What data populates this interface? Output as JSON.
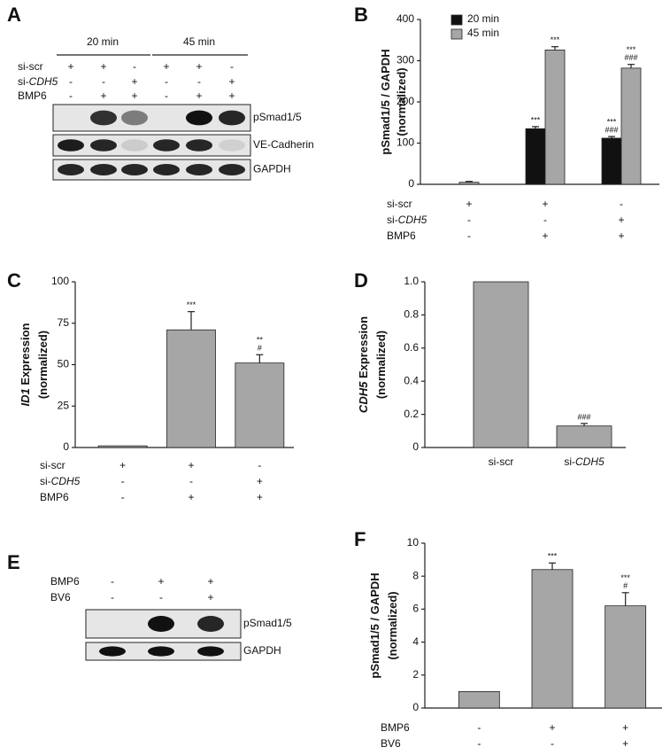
{
  "chart_data": [
    {
      "panel": "B",
      "type": "bar",
      "ylabel": [
        [
          {
            "text": "pSmad1/5 / GAPDH"
          }
        ],
        [
          {
            "text": "(normalized)"
          }
        ]
      ],
      "series": [
        {
          "name": "20 min",
          "color": "#111111",
          "values": [
            null,
            135,
            112
          ],
          "errors": [
            null,
            5,
            4
          ],
          "significance": [
            null,
            [
              "***"
            ],
            [
              "***",
              "###"
            ]
          ]
        },
        {
          "name": "45 min",
          "color": "#a6a6a6",
          "values": [
            5,
            326,
            282
          ],
          "errors": [
            2,
            8,
            9
          ],
          "significance": [
            null,
            [
              "***"
            ],
            [
              "***",
              "###"
            ]
          ]
        }
      ],
      "ylim": [
        0,
        400
      ],
      "yticks": [
        0,
        100,
        200,
        300,
        400
      ],
      "legend": "upper left",
      "conditions": [
        {
          "label": [
            {
              "text": "si-scr"
            }
          ],
          "values": [
            "+",
            "+",
            "-"
          ]
        },
        {
          "label": [
            {
              "text": "si-"
            },
            {
              "text": "CDH5",
              "italic": true
            }
          ],
          "values": [
            "-",
            "-",
            "+"
          ]
        },
        {
          "label": [
            {
              "text": "BMP6"
            }
          ],
          "values": [
            "-",
            "+",
            "+"
          ]
        }
      ]
    },
    {
      "panel": "C",
      "type": "bar",
      "ylabel": [
        [
          {
            "text": "ID1",
            "italic": true
          },
          {
            "text": " Expression"
          }
        ],
        [
          {
            "text": "(normalized)"
          }
        ]
      ],
      "series": [
        {
          "color": "#a6a6a6",
          "values": [
            1,
            71,
            51
          ],
          "errors": [
            0,
            11,
            5
          ],
          "significance": [
            null,
            [
              "***"
            ],
            [
              "**",
              "#"
            ]
          ]
        }
      ],
      "ylim": [
        0,
        100
      ],
      "yticks": [
        0,
        25,
        50,
        75,
        100
      ],
      "conditions": [
        {
          "label": [
            {
              "text": "si-scr"
            }
          ],
          "values": [
            "+",
            "+",
            "-"
          ]
        },
        {
          "label": [
            {
              "text": "si-"
            },
            {
              "text": "CDH5",
              "italic": true
            }
          ],
          "values": [
            "-",
            "-",
            "+"
          ]
        },
        {
          "label": [
            {
              "text": "BMP6"
            }
          ],
          "values": [
            "-",
            "+",
            "+"
          ]
        }
      ]
    },
    {
      "panel": "D",
      "type": "bar",
      "ylabel": [
        [
          {
            "text": "CDH5",
            "italic": true
          },
          {
            "text": " Expression"
          }
        ],
        [
          {
            "text": "(normalized)"
          }
        ]
      ],
      "categories": [
        [
          {
            "text": "si-scr"
          }
        ],
        [
          {
            "text": "si-"
          },
          {
            "text": "CDH5",
            "italic": true
          }
        ]
      ],
      "series": [
        {
          "color": "#a6a6a6",
          "values": [
            1,
            0.13
          ],
          "errors": [
            0,
            0.015
          ],
          "significance": [
            null,
            [
              "###"
            ]
          ]
        }
      ],
      "ylim": [
        0,
        1
      ],
      "yticks": [
        0,
        0.2,
        0.4,
        0.6,
        0.8,
        {
          "value": 1,
          "label": "1.0"
        }
      ]
    },
    {
      "panel": "F",
      "type": "bar",
      "ylabel": [
        [
          {
            "text": "pSmad1/5 / GAPDH"
          }
        ],
        [
          {
            "text": "(normalized)"
          }
        ]
      ],
      "series": [
        {
          "color": "#a6a6a6",
          "values": [
            1,
            8.4,
            6.2
          ],
          "errors": [
            0,
            0.4,
            0.8
          ],
          "significance": [
            null,
            [
              "***"
            ],
            [
              "***",
              "#"
            ]
          ]
        }
      ],
      "ylim": [
        0,
        10
      ],
      "yticks": [
        0,
        2,
        4,
        6,
        8,
        10
      ],
      "conditions": [
        {
          "label": [
            {
              "text": "BMP6"
            }
          ],
          "values": [
            "-",
            "+",
            "+"
          ]
        },
        {
          "label": [
            {
              "text": "BV6"
            }
          ],
          "values": [
            "-",
            "-",
            "+"
          ]
        }
      ]
    }
  ],
  "blots": [
    {
      "panel": "A",
      "groups": [
        "20 min",
        "45 min"
      ],
      "conditions": [
        {
          "label": [
            {
              "text": "si-scr"
            }
          ],
          "values": [
            "+",
            "+",
            "-",
            "+",
            "+",
            "-"
          ]
        },
        {
          "label": [
            {
              "text": "si-"
            },
            {
              "text": "CDH5",
              "italic": true
            }
          ],
          "values": [
            "-",
            "-",
            "+",
            "-",
            "-",
            "+"
          ]
        },
        {
          "label": [
            {
              "text": "BMP6"
            }
          ],
          "values": [
            "-",
            "+",
            "+",
            "-",
            "+",
            "+"
          ]
        }
      ],
      "bands": [
        "pSmad1/5",
        "VE-Cadherin",
        "GAPDH"
      ]
    },
    {
      "panel": "E",
      "conditions": [
        {
          "label": [
            {
              "text": "BMP6"
            }
          ],
          "values": [
            "-",
            "+",
            "+"
          ]
        },
        {
          "label": [
            {
              "text": "BV6"
            }
          ],
          "values": [
            "-",
            "-",
            "+"
          ]
        }
      ],
      "bands": [
        "pSmad1/5",
        "GAPDH"
      ]
    }
  ]
}
